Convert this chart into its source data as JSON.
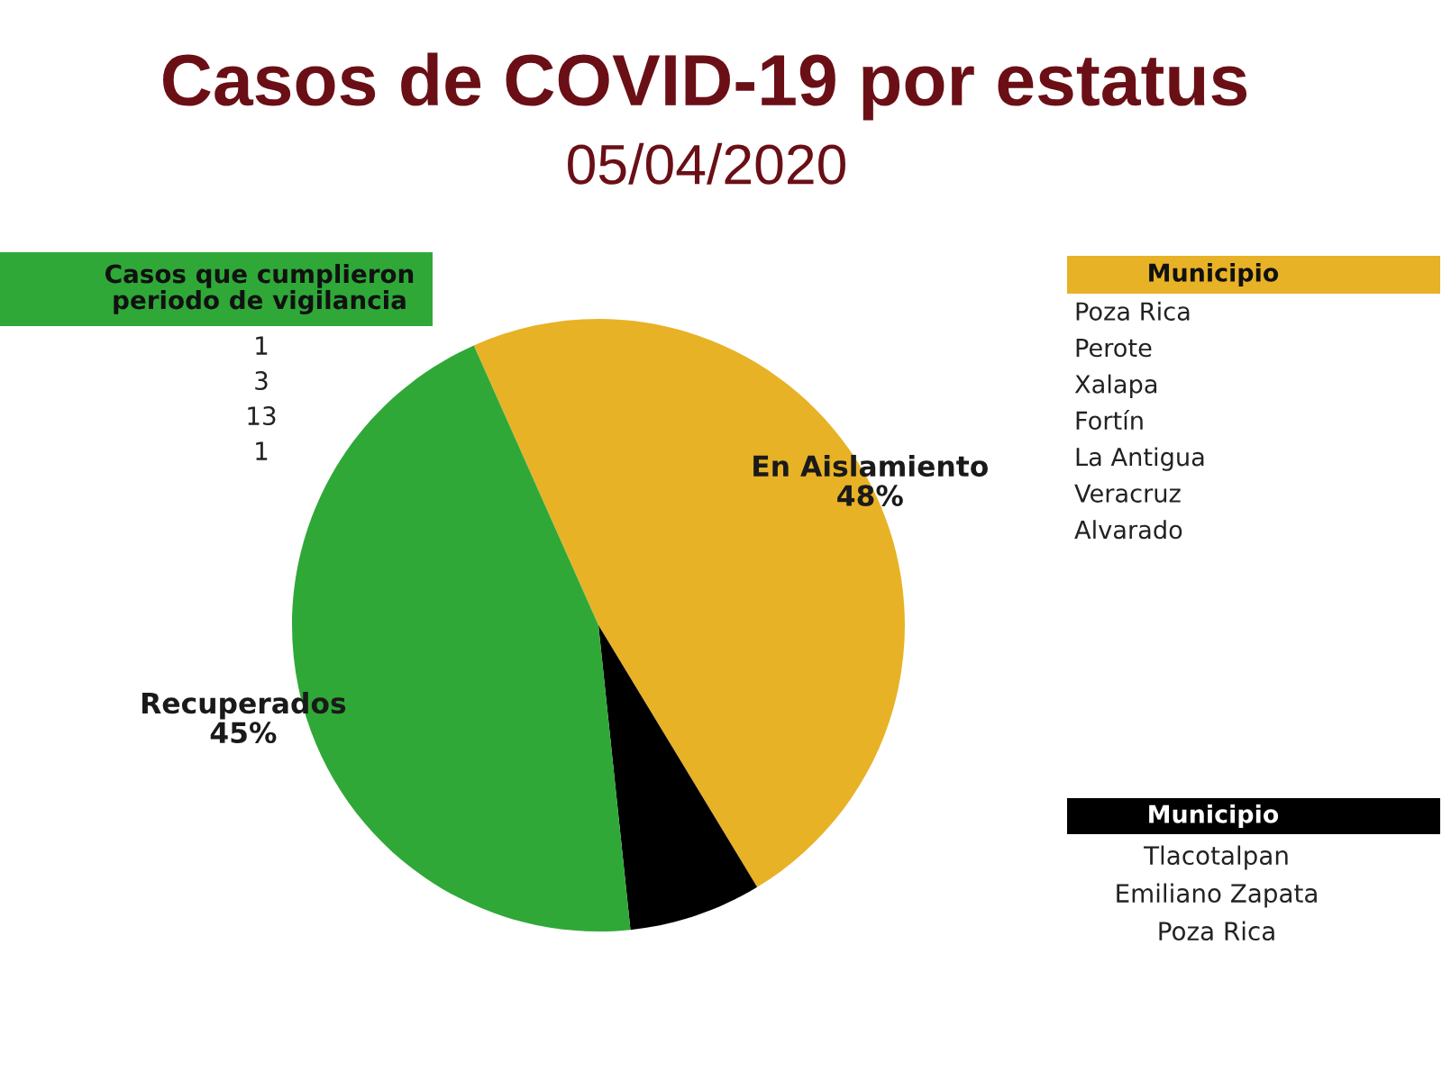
{
  "chart_data": [
    {
      "type": "pie",
      "title": "Casos de COVID-19 por estatus",
      "subtitle": "05/04/2020",
      "categories": [
        "En Aislamiento",
        null,
        "Recuperados"
      ],
      "values": [
        48,
        7,
        45
      ],
      "value_labels": [
        "48%",
        null,
        "45%"
      ],
      "colors": [
        "#e8b226",
        "#000000",
        "#2fa838"
      ]
    },
    {
      "type": "other",
      "title": "Casos que cumplieron\nperiodo de vigilancia",
      "values": [
        1,
        3,
        13,
        1
      ],
      "data_labels": true,
      "color": "#2fa838"
    },
    {
      "type": "other",
      "title": "Municipio",
      "annotations": [
        "Poza Rica",
        "Perote",
        "Xalapa",
        "Fortín",
        "La Antigua",
        "Veracruz",
        "Alvarado"
      ],
      "color": "#e8b226"
    },
    {
      "type": "other",
      "title": "Municipio",
      "annotations": [
        "Tlacotalpan",
        "Emiliano Zapata",
        "Poza Rica"
      ],
      "color": "#000000"
    }
  ]
}
